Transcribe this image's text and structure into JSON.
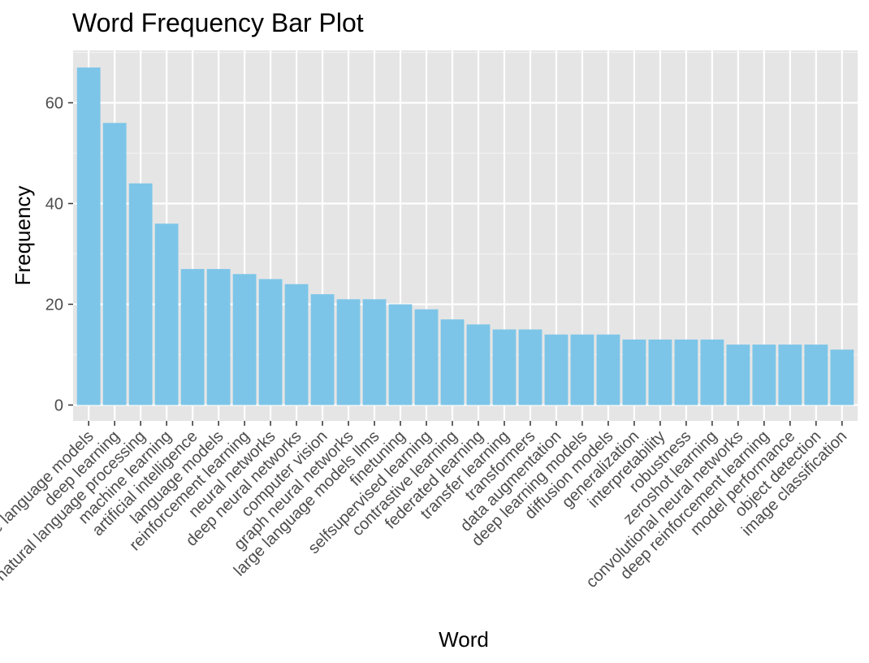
{
  "chart_data": {
    "type": "bar",
    "title": "Word Frequency Bar Plot",
    "xlabel": "Word",
    "ylabel": "Frequency",
    "ylim": [
      0,
      70
    ],
    "yticks": [
      0,
      20,
      40,
      60
    ],
    "grid": true,
    "bar_color": "#7CC5E8",
    "panel_color": "#E5E5E5",
    "categories": [
      "large language models",
      "deep learning",
      "natural language processing",
      "machine learning",
      "artificial intelligence",
      "language models",
      "reinforcement learning",
      "neural networks",
      "deep neural networks",
      "computer vision",
      "graph neural networks",
      "large language models llms",
      "finetuning",
      "selfsupervised learning",
      "contrastive learning",
      "federated learning",
      "transfer learning",
      "transformers",
      "data augmentation",
      "deep learning models",
      "diffusion models",
      "generalization",
      "interpretability",
      "robustness",
      "zeroshot learning",
      "convolutional neural networks",
      "deep reinforcement learning",
      "model performance",
      "object detection",
      "image classification"
    ],
    "values": [
      67,
      56,
      44,
      36,
      27,
      27,
      26,
      25,
      24,
      22,
      21,
      21,
      20,
      19,
      17,
      16,
      15,
      15,
      14,
      14,
      14,
      13,
      13,
      13,
      13,
      12,
      12,
      12,
      12,
      11
    ]
  }
}
